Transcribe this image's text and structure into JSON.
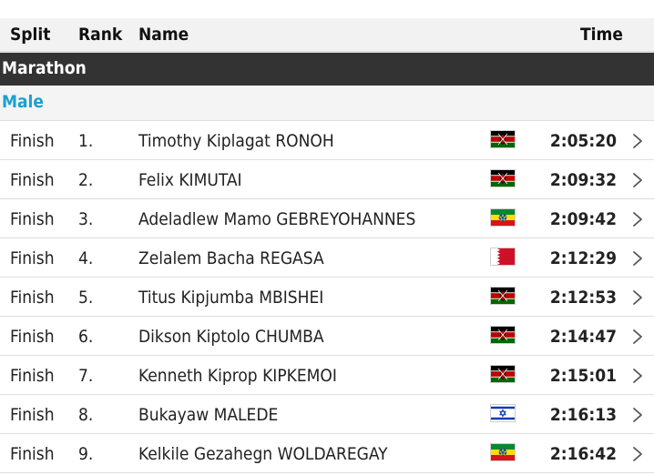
{
  "table_header": {
    "split": "Split",
    "rank": "Rank",
    "name": "Name",
    "time": "Time"
  },
  "event": "Marathon",
  "gender": "Male",
  "colors": {
    "section_bg": "#333333",
    "gender_text": "#1aa0d2",
    "header_bg": "#f2f2f2",
    "row_divider": "#dedede"
  },
  "rows": [
    {
      "split": "Finish",
      "rank": "1.",
      "name": "Timothy Kiplagat RONOH",
      "flag_icon": "kenya-flag-icon",
      "time": "2:05:20"
    },
    {
      "split": "Finish",
      "rank": "2.",
      "name": "Felix KIMUTAI",
      "flag_icon": "kenya-flag-icon",
      "time": "2:09:32"
    },
    {
      "split": "Finish",
      "rank": "3.",
      "name": "Adeladlew Mamo GEBREYOHANNES",
      "flag_icon": "ethiopia-flag-icon",
      "time": "2:09:42"
    },
    {
      "split": "Finish",
      "rank": "4.",
      "name": "Zelalem Bacha REGASA",
      "flag_icon": "bahrain-flag-icon",
      "time": "2:12:29"
    },
    {
      "split": "Finish",
      "rank": "5.",
      "name": "Titus Kipjumba MBISHEI",
      "flag_icon": "kenya-flag-icon",
      "time": "2:12:53"
    },
    {
      "split": "Finish",
      "rank": "6.",
      "name": "Dikson Kiptolo CHUMBA",
      "flag_icon": "kenya-flag-icon",
      "time": "2:14:47"
    },
    {
      "split": "Finish",
      "rank": "7.",
      "name": "Kenneth Kiprop KIPKEMOI",
      "flag_icon": "kenya-flag-icon",
      "time": "2:15:01"
    },
    {
      "split": "Finish",
      "rank": "8.",
      "name": "Bukayaw MALEDE",
      "flag_icon": "israel-flag-icon",
      "time": "2:16:13"
    },
    {
      "split": "Finish",
      "rank": "9.",
      "name": "Kelkile Gezahegn WOLDAREGAY",
      "flag_icon": "ethiopia-flag-icon",
      "time": "2:16:42"
    }
  ]
}
